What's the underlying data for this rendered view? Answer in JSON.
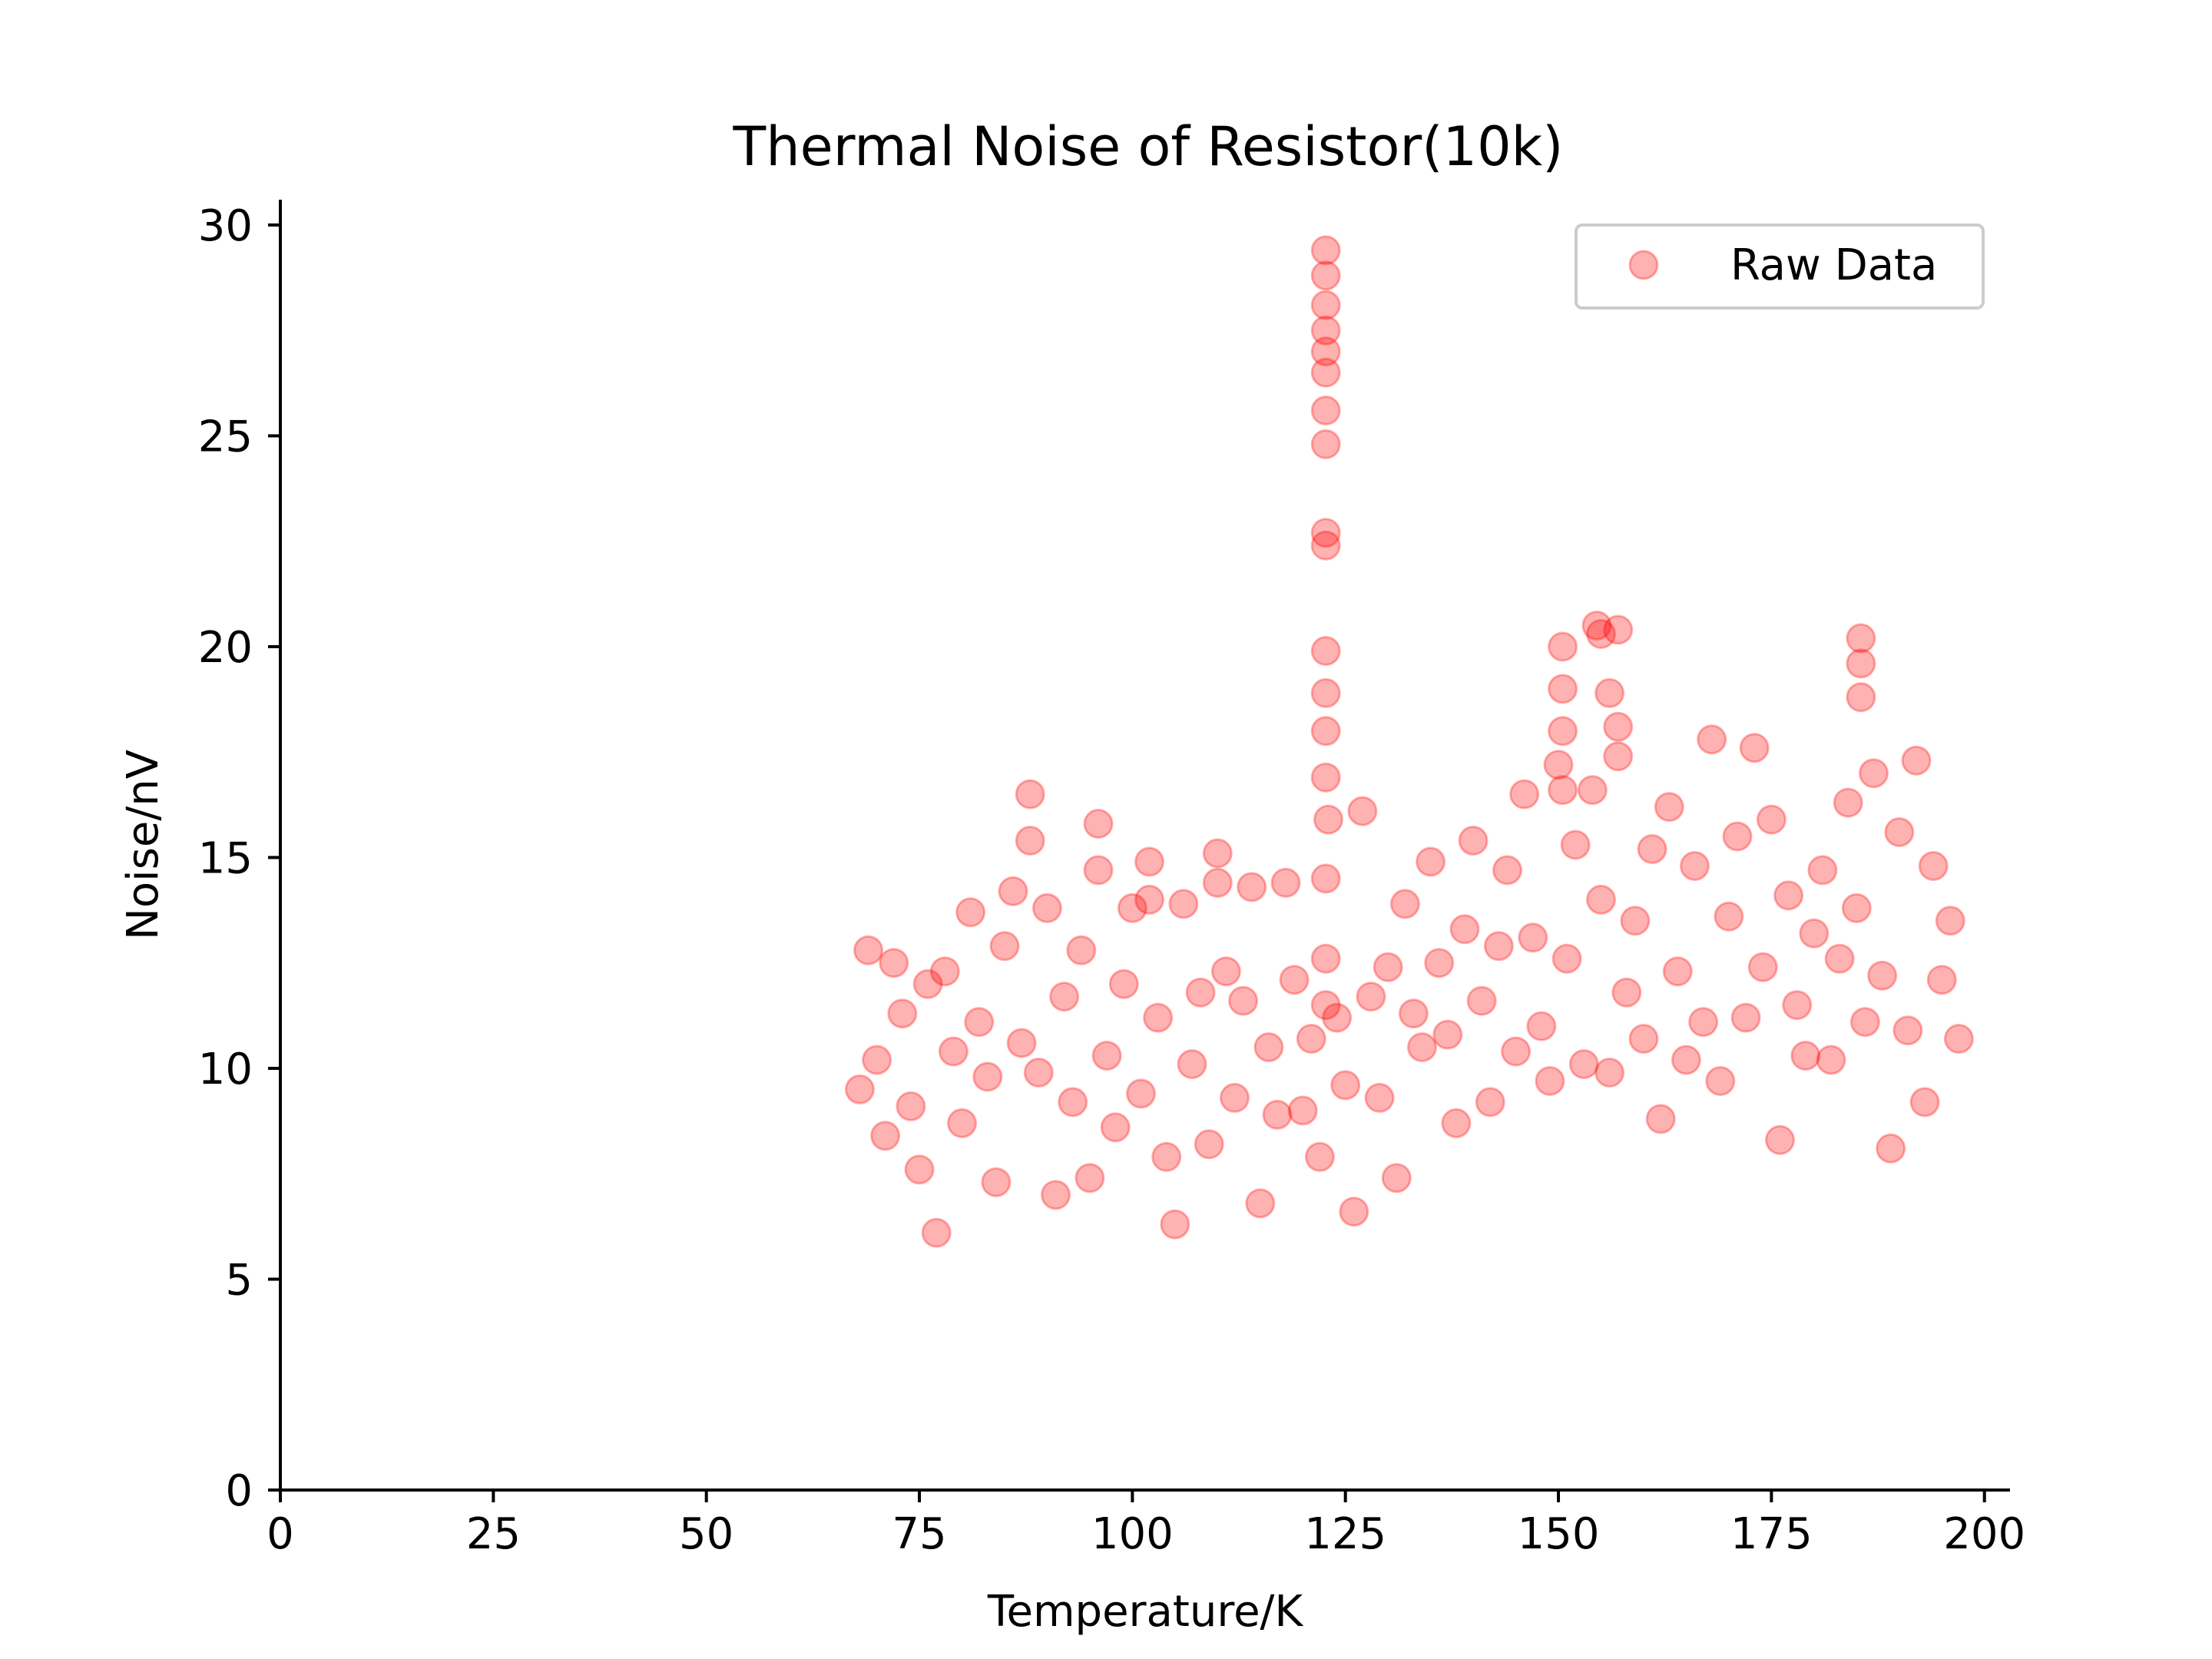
{
  "chart_data": {
    "type": "scatter",
    "title": "Thermal Noise of Resistor(10k)",
    "xlabel": "Temperature/K",
    "ylabel": "Noise/nV",
    "xlim": [
      0,
      203
    ],
    "ylim": [
      0,
      30.6
    ],
    "xticks": [
      0,
      25,
      50,
      75,
      100,
      125,
      150,
      175,
      200
    ],
    "yticks": [
      0,
      5,
      10,
      15,
      20,
      25,
      30
    ],
    "grid": false,
    "legend_position": "top-right",
    "series": [
      {
        "name": "Raw Data",
        "color": "#ff0000",
        "marker_opacity": 0.3,
        "x": [
          68,
          69,
          70,
          71,
          72,
          73,
          74,
          75,
          76,
          77,
          78,
          79,
          80,
          81,
          82,
          83,
          84,
          85,
          86,
          87,
          88,
          89,
          90,
          91,
          92,
          93,
          94,
          95,
          96,
          97,
          98,
          99,
          100,
          101,
          102,
          103,
          104,
          105,
          106,
          107,
          108,
          109,
          110,
          111,
          112,
          113,
          114,
          115,
          116,
          117,
          118,
          119,
          120,
          121,
          122,
          123,
          124,
          125,
          126,
          127,
          128,
          129,
          130,
          131,
          132,
          133,
          134,
          135,
          136,
          137,
          138,
          139,
          140,
          141,
          142,
          143,
          144,
          145,
          146,
          147,
          148,
          149,
          150,
          151,
          152,
          153,
          154,
          155,
          156,
          157,
          158,
          159,
          160,
          161,
          162,
          163,
          164,
          165,
          166,
          167,
          168,
          169,
          170,
          171,
          172,
          173,
          174,
          175,
          176,
          177,
          178,
          179,
          180,
          181,
          182,
          183,
          184,
          185,
          186,
          187,
          188,
          189,
          190,
          191,
          192,
          193,
          194,
          195,
          196,
          197,
          122.7,
          122.7,
          122.7,
          122.7,
          122.7,
          122.7,
          122.7,
          122.7,
          122.7,
          122.7,
          122.7,
          122.7,
          122.7,
          122.7,
          122.7,
          122.7,
          122.7,
          150.5,
          150.5,
          150.5,
          150.5,
          154.5,
          155,
          156,
          157,
          157,
          185.5,
          185.5,
          185.5,
          88,
          96,
          102,
          110
        ],
        "y": [
          9.5,
          12.8,
          10.2,
          8.4,
          12.5,
          11.3,
          9.1,
          7.6,
          12.0,
          6.1,
          12.3,
          10.4,
          8.7,
          13.7,
          11.1,
          9.8,
          7.3,
          12.9,
          14.2,
          10.6,
          16.5,
          9.9,
          13.8,
          7.0,
          11.7,
          9.2,
          12.8,
          7.4,
          15.8,
          10.3,
          8.6,
          12.0,
          13.8,
          9.4,
          14.9,
          11.2,
          7.9,
          6.3,
          13.9,
          10.1,
          11.8,
          8.2,
          15.1,
          12.3,
          9.3,
          11.6,
          14.3,
          6.8,
          10.5,
          8.9,
          14.4,
          12.1,
          9.0,
          10.7,
          7.9,
          15.9,
          11.2,
          9.6,
          6.6,
          16.1,
          11.7,
          9.3,
          12.4,
          7.4,
          13.9,
          11.3,
          10.5,
          14.9,
          12.5,
          10.8,
          8.7,
          13.3,
          15.4,
          11.6,
          9.2,
          12.9,
          14.7,
          10.4,
          16.5,
          13.1,
          11.0,
          9.7,
          17.2,
          12.6,
          15.3,
          10.1,
          16.6,
          14.0,
          9.9,
          17.4,
          11.8,
          13.5,
          10.7,
          15.2,
          8.8,
          16.2,
          12.3,
          10.2,
          14.8,
          11.1,
          17.8,
          9.7,
          13.6,
          15.5,
          11.2,
          17.6,
          12.4,
          15.9,
          8.3,
          14.1,
          11.5,
          10.3,
          13.2,
          14.7,
          10.2,
          12.6,
          16.3,
          13.8,
          11.1,
          17.0,
          12.2,
          8.1,
          15.6,
          10.9,
          17.3,
          9.2,
          14.8,
          12.1,
          13.5,
          10.7,
          29.4,
          28.8,
          28.1,
          27.5,
          27.0,
          26.5,
          25.6,
          24.8,
          22.7,
          22.4,
          19.9,
          18.9,
          18.0,
          16.9,
          14.5,
          12.6,
          11.5,
          20.0,
          19.0,
          18.0,
          16.6,
          20.5,
          20.3,
          18.9,
          20.4,
          18.1,
          20.2,
          19.6,
          18.8,
          15.4,
          14.7,
          14.0,
          14.4
        ]
      }
    ]
  }
}
